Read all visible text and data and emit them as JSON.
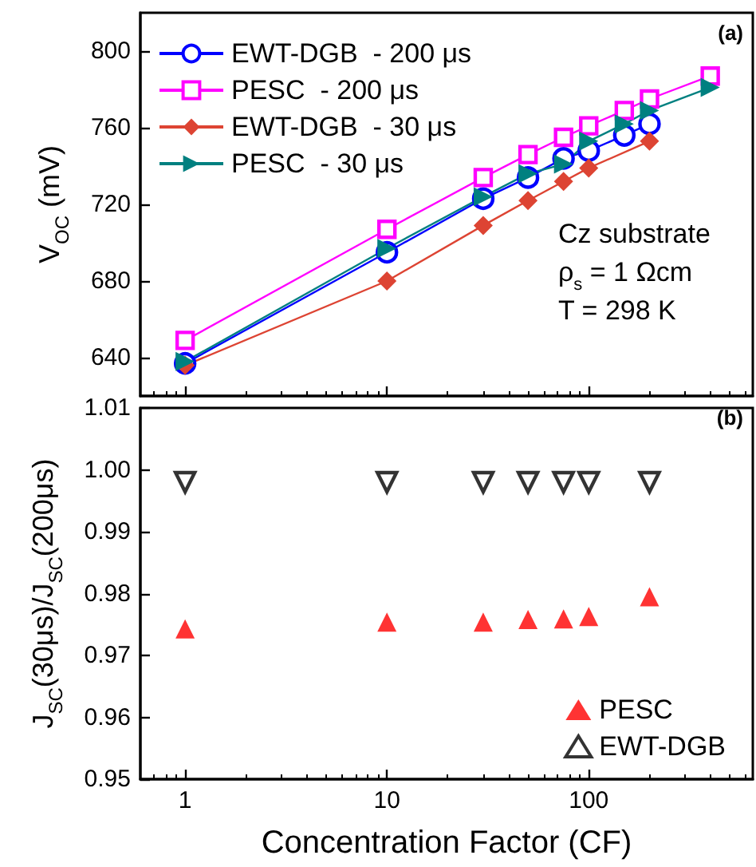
{
  "chart_data": [
    {
      "type": "line",
      "ylabel": "V$_{OC}$ (mV)",
      "log": "x",
      "xlim": [
        0.6,
        650
      ],
      "xticks": [
        1,
        10,
        100
      ],
      "ylim": [
        620,
        820
      ],
      "yticks": [
        640,
        680,
        720,
        760,
        800
      ],
      "tick_labels": "y",
      "legend": "top left",
      "grid": false,
      "annotations": [
        "(a)",
        "Cz substrate",
        "ρ$_{s}$ = 1 Ωcm",
        "T = 298 K"
      ],
      "series": [
        {
          "name": "EWT-DGB  - 200 μs",
          "color": "#0000ff",
          "marker": "circle",
          "x": [
            1,
            10,
            30,
            50,
            75,
            100,
            150,
            200
          ],
          "values": [
            637,
            695,
            723,
            734,
            744,
            748,
            756,
            762
          ]
        },
        {
          "name": "PESC  - 200 μs",
          "color": "#ff00ff",
          "marker": "square",
          "x": [
            1,
            10,
            30,
            50,
            75,
            100,
            150,
            200,
            400
          ],
          "values": [
            649,
            707,
            734,
            746,
            755,
            761,
            769,
            775,
            787
          ]
        },
        {
          "name": "EWT-DGB  - 30 μs",
          "color": "#dd4433",
          "marker": "diamond",
          "x": [
            1,
            10,
            30,
            50,
            75,
            100,
            200
          ],
          "values": [
            636,
            680,
            709,
            722,
            732,
            739,
            753
          ]
        },
        {
          "name": "PESC  - 30 μs",
          "color": "#008080",
          "marker": "triangle",
          "x": [
            1,
            10,
            30,
            50,
            75,
            100,
            150,
            200,
            400
          ],
          "values": [
            638,
            697,
            724,
            736,
            741,
            753,
            762,
            769,
            781
          ]
        }
      ]
    },
    {
      "type": "scatter",
      "xlabel": "Concentration Factor (CF)",
      "ylabel": "J$_{SC}$(30μs)/J$_{SC}$(200μs)",
      "log": "x",
      "xlim": [
        0.6,
        650
      ],
      "xticks": [
        1,
        10,
        100
      ],
      "ylim": [
        0.95,
        1.01
      ],
      "yticks": [
        0.95,
        0.96,
        0.97,
        0.98,
        0.99,
        "1.00",
        1.01
      ],
      "legend": "bottom right",
      "grid": false,
      "annotations": [
        "(b)"
      ],
      "x": [
        1,
        10,
        30,
        50,
        75,
        100,
        200
      ],
      "series": [
        {
          "name": "PESC",
          "color": "#ff0000",
          "marker": "triangle",
          "values": [
            0.9743,
            0.9754,
            0.9754,
            0.9758,
            0.9759,
            0.9763,
            0.9795
          ]
        },
        {
          "name": "EWT-DGB",
          "color": "#000000",
          "marker": "triangle",
          "values": [
            0.998,
            0.998,
            0.998,
            0.998,
            0.998,
            0.998,
            0.998
          ]
        }
      ]
    }
  ]
}
